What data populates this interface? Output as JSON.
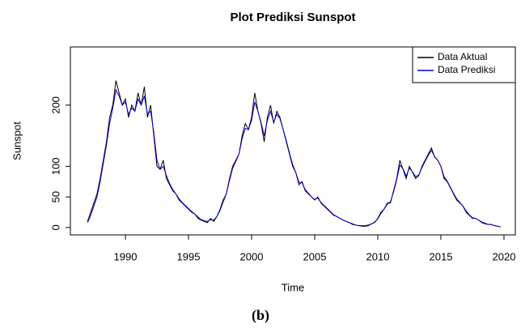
{
  "chart_data": {
    "type": "line",
    "title": "Plot Prediksi Sunspot",
    "x_label": "Time",
    "y_label": "Sunspot",
    "caption": "(b)",
    "x": [
      1987,
      1987.25,
      1987.5,
      1987.75,
      1988,
      1988.25,
      1988.5,
      1988.75,
      1989,
      1989.25,
      1989.5,
      1989.75,
      1990,
      1990.25,
      1990.5,
      1990.75,
      1991,
      1991.25,
      1991.5,
      1991.75,
      1992,
      1992.25,
      1992.5,
      1992.75,
      1993,
      1993.25,
      1993.5,
      1993.75,
      1994,
      1994.25,
      1994.5,
      1994.75,
      1995,
      1995.25,
      1995.5,
      1995.75,
      1996,
      1996.25,
      1996.5,
      1996.75,
      1997,
      1997.25,
      1997.5,
      1997.75,
      1998,
      1998.25,
      1998.5,
      1998.75,
      1999,
      1999.25,
      1999.5,
      1999.75,
      2000,
      2000.25,
      2000.5,
      2000.75,
      2001,
      2001.25,
      2001.5,
      2001.75,
      2002,
      2002.25,
      2002.5,
      2002.75,
      2003,
      2003.25,
      2003.5,
      2003.75,
      2004,
      2004.25,
      2004.5,
      2004.75,
      2005,
      2005.25,
      2005.5,
      2005.75,
      2006,
      2006.25,
      2006.5,
      2006.75,
      2007,
      2007.25,
      2007.5,
      2007.75,
      2008,
      2008.25,
      2008.5,
      2008.75,
      2009,
      2009.25,
      2009.5,
      2009.75,
      2010,
      2010.25,
      2010.5,
      2010.75,
      2011,
      2011.25,
      2011.5,
      2011.75,
      2012,
      2012.25,
      2012.5,
      2012.75,
      2013,
      2013.25,
      2013.5,
      2013.75,
      2014,
      2014.25,
      2014.5,
      2014.75,
      2015,
      2015.25,
      2015.5,
      2015.75,
      2016,
      2016.25,
      2016.5,
      2016.75,
      2017,
      2017.25,
      2017.5,
      2017.75,
      2018,
      2018.25,
      2018.5,
      2018.75,
      2019,
      2019.25,
      2019.5,
      2019.75
    ],
    "series": [
      {
        "name": "Data Aktual",
        "color": "#000000",
        "values": [
          10,
          25,
          40,
          55,
          80,
          110,
          140,
          180,
          200,
          240,
          220,
          200,
          210,
          180,
          200,
          190,
          220,
          200,
          230,
          180,
          200,
          150,
          100,
          95,
          110,
          80,
          70,
          60,
          55,
          45,
          40,
          35,
          30,
          25,
          22,
          15,
          12,
          10,
          8,
          15,
          10,
          18,
          30,
          45,
          55,
          80,
          100,
          110,
          120,
          150,
          170,
          160,
          180,
          220,
          190,
          170,
          140,
          180,
          200,
          170,
          190,
          180,
          160,
          140,
          120,
          100,
          90,
          70,
          75,
          60,
          55,
          50,
          45,
          50,
          40,
          35,
          30,
          25,
          20,
          18,
          15,
          12,
          10,
          8,
          5,
          4,
          3,
          2,
          2,
          3,
          6,
          8,
          15,
          25,
          30,
          40,
          40,
          60,
          80,
          110,
          95,
          80,
          100,
          90,
          80,
          85,
          100,
          110,
          120,
          130,
          115,
          110,
          100,
          80,
          75,
          65,
          55,
          45,
          40,
          35,
          25,
          20,
          15,
          15,
          12,
          8,
          6,
          5,
          5,
          3,
          2,
          1
        ]
      },
      {
        "name": "Data Prediksi",
        "color": "#0000cc",
        "values": [
          8,
          20,
          35,
          50,
          75,
          105,
          135,
          170,
          195,
          225,
          215,
          200,
          205,
          185,
          195,
          190,
          210,
          200,
          215,
          185,
          190,
          155,
          110,
          95,
          100,
          85,
          72,
          62,
          55,
          47,
          41,
          36,
          31,
          26,
          22,
          17,
          13,
          11,
          10,
          13,
          12,
          18,
          28,
          42,
          55,
          77,
          97,
          108,
          120,
          145,
          162,
          160,
          175,
          205,
          190,
          172,
          150,
          175,
          190,
          172,
          185,
          178,
          160,
          142,
          122,
          103,
          90,
          74,
          73,
          62,
          56,
          50,
          46,
          48,
          41,
          36,
          31,
          26,
          21,
          18,
          15,
          12,
          10,
          8,
          6,
          4,
          3,
          3,
          3,
          4,
          6,
          9,
          14,
          23,
          30,
          38,
          42,
          58,
          78,
          102,
          96,
          84,
          97,
          91,
          83,
          86,
          98,
          108,
          118,
          126,
          116,
          110,
          100,
          83,
          76,
          66,
          56,
          47,
          41,
          35,
          27,
          21,
          16,
          15,
          12,
          9,
          7,
          5,
          5,
          3,
          2,
          1
        ]
      }
    ],
    "xlim": [
      1985.64,
      2020.9
    ],
    "xticks": [
      1990,
      1995,
      2000,
      2005,
      2010,
      2015,
      2020
    ],
    "ylim": [
      -12,
      295
    ],
    "yticks": [
      0,
      50,
      100,
      200
    ],
    "legend": "top-right"
  }
}
